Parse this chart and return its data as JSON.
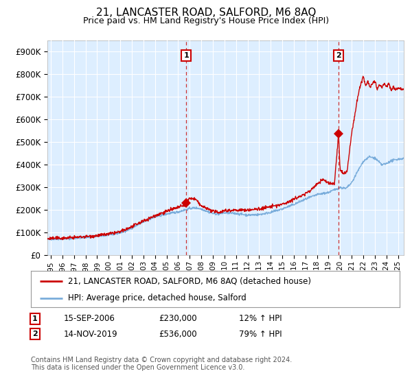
{
  "title": "21, LANCASTER ROAD, SALFORD, M6 8AQ",
  "subtitle": "Price paid vs. HM Land Registry's House Price Index (HPI)",
  "background_color": "#ffffff",
  "plot_bg_color": "#ddeeff",
  "grid_color": "#ffffff",
  "ylabel_ticks": [
    "£0",
    "£100K",
    "£200K",
    "£300K",
    "£400K",
    "£500K",
    "£600K",
    "£700K",
    "£800K",
    "£900K"
  ],
  "ytick_vals": [
    0,
    100000,
    200000,
    300000,
    400000,
    500000,
    600000,
    700000,
    800000,
    900000
  ],
  "ylim": [
    0,
    950000
  ],
  "xlim_start": 1994.7,
  "xlim_end": 2025.5,
  "line1_color": "#cc0000",
  "line2_color": "#7aaddb",
  "line1_label": "21, LANCASTER ROAD, SALFORD, M6 8AQ (detached house)",
  "line2_label": "HPI: Average price, detached house, Salford",
  "sale1_date_x": 2006.71,
  "sale1_price": 230000,
  "sale2_date_x": 2019.87,
  "sale2_price": 536000,
  "table_row1": [
    "1",
    "15-SEP-2006",
    "£230,000",
    "12% ↑ HPI"
  ],
  "table_row2": [
    "2",
    "14-NOV-2019",
    "£536,000",
    "79% ↑ HPI"
  ],
  "footer": "Contains HM Land Registry data © Crown copyright and database right 2024.\nThis data is licensed under the Open Government Licence v3.0.",
  "xtick_years": [
    1995,
    1996,
    1997,
    1998,
    1999,
    2000,
    2001,
    2002,
    2003,
    2004,
    2005,
    2006,
    2007,
    2008,
    2009,
    2010,
    2011,
    2012,
    2013,
    2014,
    2015,
    2016,
    2017,
    2018,
    2019,
    2020,
    2021,
    2022,
    2023,
    2024,
    2025
  ]
}
